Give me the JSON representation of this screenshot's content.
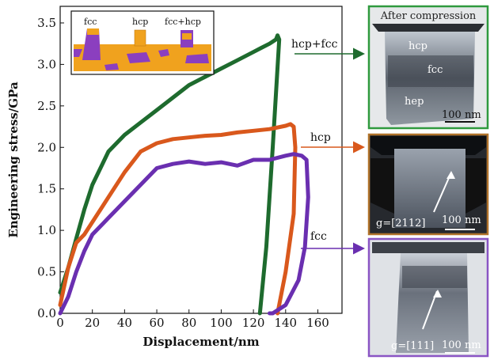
{
  "chart_data": {
    "type": "line",
    "xlabel": "Displacement/nm",
    "ylabel": "Engineering stress/GPa",
    "xlim": [
      0,
      175
    ],
    "ylim": [
      0,
      3.7
    ],
    "xticks": [
      "0",
      "20",
      "40",
      "60",
      "80",
      "100",
      "120",
      "140",
      "160"
    ],
    "yticks": [
      "0.0",
      "0.5",
      "1.0",
      "1.5",
      "2.0",
      "2.5",
      "3.0",
      "3.5"
    ],
    "grid": false,
    "series": [
      {
        "name": "hcp+fcc",
        "color": "#1e6b2e",
        "x": [
          0,
          5,
          10,
          15,
          20,
          25,
          30,
          40,
          50,
          60,
          70,
          80,
          90,
          100,
          110,
          120,
          125,
          130,
          134,
          135,
          136,
          132,
          128,
          124
        ],
        "y": [
          0.25,
          0.55,
          0.9,
          1.25,
          1.55,
          1.75,
          1.95,
          2.15,
          2.3,
          2.45,
          2.6,
          2.75,
          2.85,
          2.95,
          3.05,
          3.15,
          3.2,
          3.25,
          3.3,
          3.35,
          3.3,
          2.0,
          0.8,
          0.0
        ]
      },
      {
        "name": "hcp",
        "color": "#d9581c",
        "x": [
          0,
          5,
          10,
          15,
          20,
          25,
          30,
          40,
          50,
          60,
          70,
          80,
          90,
          100,
          110,
          120,
          130,
          140,
          143,
          145,
          146,
          145,
          140,
          135
        ],
        "y": [
          0.1,
          0.55,
          0.85,
          0.95,
          1.1,
          1.25,
          1.4,
          1.7,
          1.95,
          2.05,
          2.1,
          2.12,
          2.14,
          2.15,
          2.18,
          2.2,
          2.22,
          2.26,
          2.28,
          2.25,
          2.0,
          1.2,
          0.5,
          0.0
        ]
      },
      {
        "name": "fcc",
        "color": "#6a2fb0",
        "x": [
          0,
          5,
          10,
          15,
          20,
          25,
          30,
          40,
          50,
          60,
          70,
          80,
          90,
          100,
          110,
          120,
          130,
          140,
          145,
          150,
          153,
          154,
          152,
          148,
          140,
          132,
          130
        ],
        "y": [
          0.0,
          0.2,
          0.5,
          0.75,
          0.95,
          1.05,
          1.15,
          1.35,
          1.55,
          1.75,
          1.8,
          1.83,
          1.8,
          1.82,
          1.78,
          1.85,
          1.85,
          1.9,
          1.92,
          1.9,
          1.85,
          1.4,
          0.8,
          0.4,
          0.1,
          0.0,
          0.0
        ]
      }
    ],
    "curve_labels": [
      "hcp+fcc",
      "hcp",
      "fcc"
    ]
  },
  "inset": {
    "labels": [
      "fcc",
      "hcp",
      "fcc+hcp"
    ]
  },
  "panels": [
    {
      "title": "After compression",
      "phases": [
        "hcp",
        "fcc",
        "hep"
      ],
      "scale": "100 nm",
      "border": "#2f9a3e"
    },
    {
      "gvec": "g=[2112]",
      "scale": "100 nm",
      "border": "#b0722a"
    },
    {
      "gvec": "g=[111]",
      "scale": "100 nm",
      "border": "#8a55c4"
    }
  ]
}
